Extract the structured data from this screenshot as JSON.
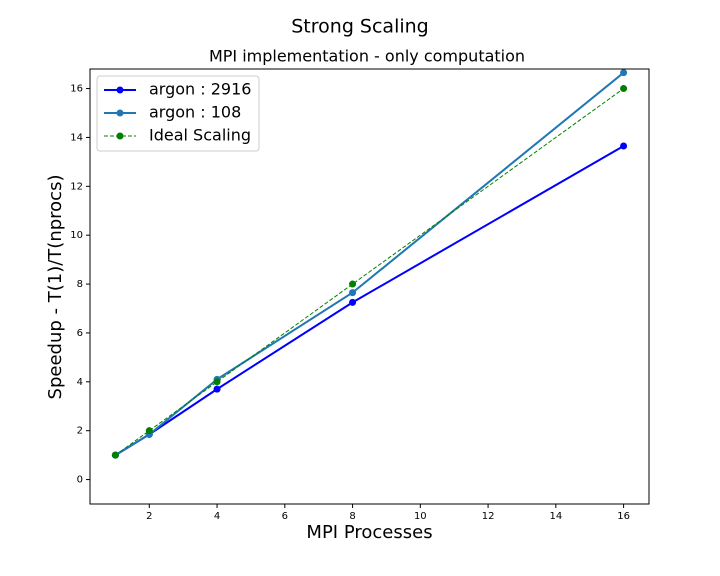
{
  "chart_data": {
    "type": "line",
    "suptitle": "Strong Scaling",
    "title": "MPI implementation - only computation",
    "xlabel": "MPI Processes",
    "ylabel": "Speedup - T(1)/T(nprocs)",
    "xlim": [
      0.25,
      16.75
    ],
    "ylim": [
      -1,
      16.8
    ],
    "xticks": [
      2,
      4,
      6,
      8,
      10,
      12,
      14,
      16
    ],
    "yticks": [
      0,
      2,
      4,
      6,
      8,
      10,
      12,
      14,
      16
    ],
    "grid": false,
    "legend_position": "top-left",
    "series": [
      {
        "name": "argon : 2916",
        "color": "#0000ff",
        "style": "solid",
        "marker": "circle",
        "x": [
          1,
          2,
          4,
          8,
          16
        ],
        "y": [
          1.0,
          1.85,
          3.7,
          7.25,
          13.65
        ]
      },
      {
        "name": "argon : 108",
        "color": "#1f77b4",
        "style": "solid",
        "marker": "circle",
        "x": [
          1,
          2,
          4,
          8,
          16
        ],
        "y": [
          1.0,
          1.85,
          4.1,
          7.65,
          16.65
        ]
      },
      {
        "name": "Ideal Scaling",
        "color": "#008000",
        "style": "dashed",
        "marker": "circle",
        "x": [
          1,
          2,
          4,
          8,
          16
        ],
        "y": [
          1,
          2,
          4,
          8,
          16
        ]
      }
    ]
  }
}
